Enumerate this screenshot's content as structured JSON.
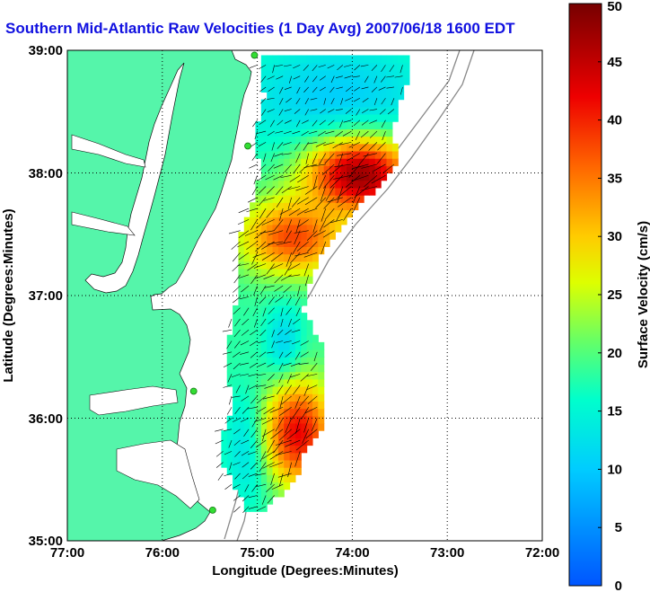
{
  "title": "Southern Mid-Atlantic Raw Velocities (1 Day Avg) 2007/06/18 1600 EDT",
  "axes": {
    "xlabel": "Longitude (Degrees:Minutes)",
    "ylabel": "Latitude (Degrees:Minutes)",
    "x_ticks": [
      "77:00",
      "76:00",
      "75:00",
      "74:00",
      "73:00",
      "72:00"
    ],
    "y_ticks": [
      "39:00",
      "38:00",
      "37:00",
      "36:00",
      "35:00"
    ]
  },
  "colorbar": {
    "label": "Surface Velocity (cm/s)",
    "ticks": [
      "0",
      "5",
      "10",
      "15",
      "20",
      "25",
      "30",
      "35",
      "40",
      "45",
      "50"
    ],
    "min": 0,
    "max": 50
  },
  "colors": {
    "land": "#55f5aa",
    "title": "#1010e0",
    "station": "#33dd33"
  },
  "chart_data": {
    "type": "heatmap",
    "title": "Southern Mid-Atlantic Raw Velocities (1 Day Avg) 2007/06/18 1600 EDT",
    "xlabel": "Longitude (Degrees:Minutes)",
    "ylabel": "Latitude (Degrees:Minutes)",
    "xlim": [
      -77,
      -72
    ],
    "ylim": [
      35,
      39
    ],
    "color_range": [
      0,
      50
    ],
    "units": "cm/s",
    "grid": true,
    "regions": [
      {
        "lat_range": [
          38.2,
          38.95
        ],
        "lon_range": [
          -75.0,
          -73.4
        ],
        "speed": 10
      },
      {
        "lat_range": [
          37.7,
          38.2
        ],
        "lon_range": [
          -74.4,
          -73.5
        ],
        "speed": 48
      },
      {
        "lat_range": [
          37.2,
          37.7
        ],
        "lon_range": [
          -75.1,
          -74.2
        ],
        "speed": 38
      },
      {
        "lat_range": [
          36.3,
          36.8
        ],
        "lon_range": [
          -74.9,
          -74.6
        ],
        "speed": 10
      },
      {
        "lat_range": [
          35.4,
          36.1
        ],
        "lon_range": [
          -75.3,
          -74.9
        ],
        "speed": 10
      },
      {
        "lat_range": [
          35.5,
          36.2
        ],
        "lon_range": [
          -74.9,
          -74.3
        ],
        "speed": 42
      }
    ],
    "stations": [
      {
        "lon": -75.03,
        "lat": 38.96
      },
      {
        "lon": -75.1,
        "lat": 38.22
      },
      {
        "lon": -75.67,
        "lat": 36.22
      },
      {
        "lon": -75.47,
        "lat": 35.25
      }
    ]
  }
}
